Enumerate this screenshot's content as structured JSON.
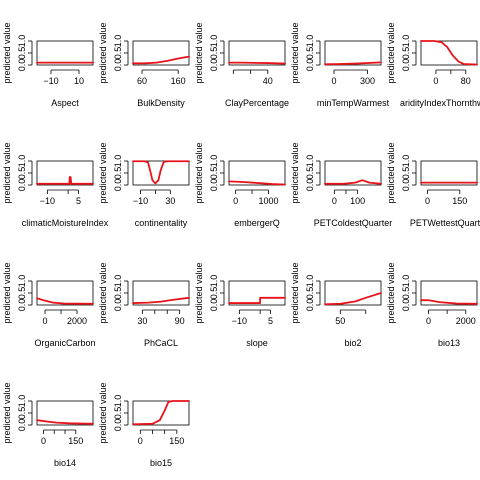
{
  "chart_data": [
    {
      "type": "line",
      "title": "",
      "xlabel": "Aspect",
      "ylabel": "predicted value",
      "ylim": [
        0,
        1
      ],
      "yticks": [
        "0.0",
        "0.5",
        "1.0"
      ],
      "xlim": [
        -20,
        20
      ],
      "xticks": [
        -10,
        10
      ],
      "series": [
        {
          "color": "#e8131a",
          "x": [
            -20,
            -10,
            0,
            10,
            20
          ],
          "values": [
            0.1,
            0.1,
            0.1,
            0.1,
            0.1
          ]
        }
      ]
    },
    {
      "type": "line",
      "title": "",
      "xlabel": "BulkDensity",
      "ylabel": "predicted value",
      "ylim": [
        0,
        1
      ],
      "yticks": [
        "0.0",
        "0.5",
        "1.0"
      ],
      "xlim": [
        35,
        190
      ],
      "xticks": [
        60,
        160
      ],
      "series": [
        {
          "color": "#e8131a",
          "x": [
            35,
            70,
            100,
            130,
            160,
            190
          ],
          "values": [
            0.07,
            0.07,
            0.1,
            0.17,
            0.27,
            0.35
          ]
        }
      ]
    },
    {
      "type": "line",
      "title": "",
      "xlabel": "ClayPercentage",
      "ylabel": "predicted value",
      "ylim": [
        0,
        1
      ],
      "yticks": [
        "0.0",
        "0.5",
        "1.0"
      ],
      "xlim": [
        -5,
        60
      ],
      "xticks": [
        0,
        20,
        40
      ],
      "xticklabels": [
        "",
        "",
        "40"
      ],
      "series": [
        {
          "color": "#e8131a",
          "x": [
            -5,
            10,
            25,
            40,
            60
          ],
          "values": [
            0.1,
            0.1,
            0.09,
            0.08,
            0.06
          ]
        }
      ]
    },
    {
      "type": "line",
      "title": "",
      "xlabel": "minTempWarmest",
      "ylabel": "predicted value",
      "ylim": [
        0,
        1
      ],
      "yticks": [
        "0.0",
        "0.5",
        "1.0"
      ],
      "xlim": [
        -80,
        420
      ],
      "xticks": [
        0,
        300
      ],
      "series": [
        {
          "color": "#e8131a",
          "x": [
            -80,
            50,
            200,
            420
          ],
          "values": [
            0.03,
            0.04,
            0.06,
            0.11
          ]
        }
      ]
    },
    {
      "type": "line",
      "title": "",
      "xlabel": "aridityIndexThornthwaite",
      "ylabel": "predicted value",
      "ylim": [
        0,
        1
      ],
      "yticks": [
        "0.0",
        "0.5",
        "1.0"
      ],
      "xlim": [
        -40,
        110
      ],
      "xticks": [
        0,
        40,
        80
      ],
      "xticklabels": [
        "0",
        "",
        "80"
      ],
      "series": [
        {
          "color": "#e8131a",
          "x": [
            -40,
            -5,
            15,
            30,
            45,
            60,
            75,
            110
          ],
          "values": [
            1.0,
            1.0,
            0.95,
            0.75,
            0.4,
            0.15,
            0.04,
            0.02
          ]
        }
      ]
    },
    {
      "type": "line",
      "title": "",
      "xlabel": "climaticMoistureIndex",
      "ylabel": "predicted value",
      "ylim": [
        0,
        1
      ],
      "yticks": [
        "0.0",
        "0.5",
        "1.0"
      ],
      "xlim": [
        -15,
        12
      ],
      "xticks": [
        -10,
        0,
        5
      ],
      "xticklabels": [
        "-10",
        "",
        "5"
      ],
      "series": [
        {
          "color": "#e8131a",
          "x": [
            -15,
            0.6,
            0.8,
            1.2,
            1.5,
            12
          ],
          "values": [
            0.05,
            0.05,
            0.33,
            0.33,
            0.05,
            0.05
          ]
        }
      ]
    },
    {
      "type": "line",
      "title": "",
      "xlabel": "continentality",
      "ylabel": "predicted value",
      "ylim": [
        0,
        1
      ],
      "yticks": [
        "0.0",
        "0.5",
        "1.0"
      ],
      "xlim": [
        -20,
        55
      ],
      "xticks": [
        -10,
        10,
        30
      ],
      "xticklabels": [
        "-10",
        "",
        "30"
      ],
      "series": [
        {
          "color": "#e8131a",
          "x": [
            -20,
            -5,
            0,
            3,
            6,
            10,
            14,
            17,
            21,
            25,
            55
          ],
          "values": [
            0.99,
            0.99,
            0.95,
            0.6,
            0.2,
            0.07,
            0.2,
            0.6,
            0.95,
            0.99,
            0.99
          ]
        }
      ]
    },
    {
      "type": "line",
      "title": "",
      "xlabel": "embergerQ",
      "ylabel": "predicted value",
      "ylim": [
        0,
        1
      ],
      "yticks": [
        "0.0",
        "0.5",
        "1.0"
      ],
      "xlim": [
        -200,
        1500
      ],
      "xticks": [
        0,
        500,
        1000
      ],
      "xticklabels": [
        "0",
        "",
        "1000"
      ],
      "series": [
        {
          "color": "#e8131a",
          "x": [
            -200,
            300,
            700,
            1100,
            1500
          ],
          "values": [
            0.15,
            0.12,
            0.08,
            0.04,
            0.02
          ]
        }
      ]
    },
    {
      "type": "line",
      "title": "",
      "xlabel": "PETColdestQuarter",
      "ylabel": "predicted value",
      "ylim": [
        0,
        1
      ],
      "yticks": [
        "0.0",
        "0.5",
        "1.0"
      ],
      "xlim": [
        -40,
        200
      ],
      "xticks": [
        0,
        50,
        100
      ],
      "xticklabels": [
        "0",
        "",
        "100"
      ],
      "series": [
        {
          "color": "#e8131a",
          "x": [
            -40,
            40,
            90,
            120,
            150,
            200
          ],
          "values": [
            0.05,
            0.05,
            0.1,
            0.2,
            0.1,
            0.05
          ]
        }
      ]
    },
    {
      "type": "line",
      "title": "",
      "xlabel": "PETWettestQuarter",
      "ylabel": "predicted value",
      "ylim": [
        0,
        1
      ],
      "yticks": [
        "0.0",
        "0.5",
        "1.0"
      ],
      "xlim": [
        -30,
        230
      ],
      "xticks": [
        0,
        150
      ],
      "xticklabels": [
        "0",
        "150"
      ],
      "series": [
        {
          "color": "#e8131a",
          "x": [
            -30,
            100,
            230
          ],
          "values": [
            0.1,
            0.1,
            0.1
          ]
        }
      ]
    },
    {
      "type": "line",
      "title": "",
      "xlabel": "OrganicCarbon",
      "ylabel": "predicted value",
      "ylim": [
        0,
        1
      ],
      "yticks": [
        "0.0",
        "0.5",
        "1.0"
      ],
      "xlim": [
        -500,
        3000
      ],
      "xticks": [
        0,
        1000,
        2000
      ],
      "xticklabels": [
        "0",
        "",
        "2000"
      ],
      "series": [
        {
          "color": "#e8131a",
          "x": [
            -500,
            0,
            500,
            1200,
            3000
          ],
          "values": [
            0.28,
            0.18,
            0.1,
            0.06,
            0.05
          ]
        }
      ]
    },
    {
      "type": "line",
      "title": "",
      "xlabel": "PhCaCL",
      "ylabel": "predicted value",
      "ylim": [
        0,
        1
      ],
      "yticks": [
        "0.0",
        "0.5",
        "1.0"
      ],
      "xlim": [
        15,
        105
      ],
      "xticks": [
        30,
        50,
        70,
        90
      ],
      "xticklabels": [
        "30",
        "",
        "",
        "90"
      ],
      "series": [
        {
          "color": "#e8131a",
          "x": [
            15,
            40,
            60,
            80,
            105
          ],
          "values": [
            0.08,
            0.1,
            0.14,
            0.22,
            0.3
          ]
        }
      ]
    },
    {
      "type": "line",
      "title": "",
      "xlabel": "slope",
      "ylabel": "predicted value",
      "ylim": [
        0,
        1
      ],
      "yticks": [
        "0.0",
        "0.5",
        "1.0"
      ],
      "xlim": [
        -15,
        12
      ],
      "xticks": [
        -10,
        0,
        5
      ],
      "xticklabels": [
        "-10",
        "",
        "5"
      ],
      "series": [
        {
          "color": "#e8131a",
          "x": [
            -15,
            0,
            0.01,
            12
          ],
          "values": [
            0.08,
            0.08,
            0.3,
            0.3
          ]
        }
      ]
    },
    {
      "type": "line",
      "title": "",
      "xlabel": "bio2",
      "ylabel": "predicted value",
      "ylim": [
        0,
        1
      ],
      "yticks": [
        "0.0",
        "0.5",
        "1.0"
      ],
      "xlim": [
        20,
        130
      ],
      "xticks": [
        50,
        100
      ],
      "xticklabels": [
        "50",
        ""
      ],
      "series": [
        {
          "color": "#e8131a",
          "x": [
            20,
            50,
            80,
            100,
            130
          ],
          "values": [
            0.03,
            0.05,
            0.15,
            0.3,
            0.5
          ]
        }
      ]
    },
    {
      "type": "line",
      "title": "",
      "xlabel": "bio13",
      "ylabel": "predicted value",
      "ylim": [
        0,
        1
      ],
      "yticks": [
        "0.0",
        "0.5",
        "1.0"
      ],
      "xlim": [
        -400,
        2600
      ],
      "xticks": [
        0,
        1000,
        2000
      ],
      "xticklabels": [
        "0",
        "",
        "2000"
      ],
      "series": [
        {
          "color": "#e8131a",
          "x": [
            -400,
            0,
            600,
            1500,
            2600
          ],
          "values": [
            0.2,
            0.2,
            0.12,
            0.06,
            0.05
          ]
        }
      ]
    },
    {
      "type": "line",
      "title": "",
      "xlabel": "bio14",
      "ylabel": "predicted value",
      "ylim": [
        0,
        1
      ],
      "yticks": [
        "0.0",
        "0.5",
        "1.0"
      ],
      "xlim": [
        -30,
        230
      ],
      "xticks": [
        0,
        50,
        100,
        150
      ],
      "xticklabels": [
        "0",
        "",
        "",
        "150"
      ],
      "series": [
        {
          "color": "#e8131a",
          "x": [
            -30,
            20,
            60,
            120,
            230
          ],
          "values": [
            0.2,
            0.14,
            0.1,
            0.07,
            0.05
          ]
        }
      ]
    },
    {
      "type": "line",
      "title": "",
      "xlabel": "bio15",
      "ylabel": "predicted value",
      "ylim": [
        0,
        1
      ],
      "yticks": [
        "0.0",
        "0.5",
        "1.0"
      ],
      "xlim": [
        -30,
        200
      ],
      "xticks": [
        0,
        50,
        100,
        150
      ],
      "xticklabels": [
        "0",
        "",
        "",
        "150"
      ],
      "series": [
        {
          "color": "#e8131a",
          "x": [
            -30,
            50,
            80,
            100,
            115,
            130,
            200
          ],
          "values": [
            0.03,
            0.05,
            0.2,
            0.6,
            0.95,
            1.0,
            1.0
          ]
        }
      ]
    }
  ]
}
